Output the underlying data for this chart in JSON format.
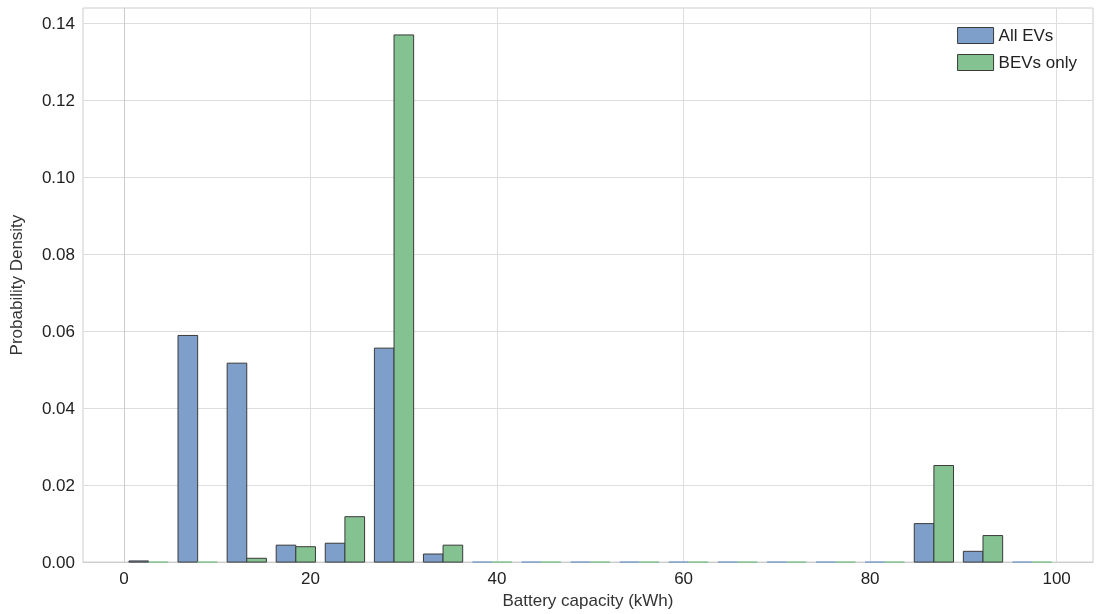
{
  "chart_data": {
    "type": "histogram",
    "xlabel": "Battery capacity (kWh)",
    "ylabel": "Probability Density",
    "bins": [
      0,
      5.26,
      10.53,
      15.79,
      21.05,
      26.32,
      31.58,
      36.84,
      42.11,
      47.37,
      52.63,
      57.89,
      63.16,
      68.42,
      73.68,
      78.95,
      84.21,
      89.47,
      94.74,
      100
    ],
    "series": [
      {
        "name": "All EVs",
        "color": "#7f9fcb",
        "values": [
          0.0003,
          0.0589,
          0.0517,
          0.0044,
          0.0049,
          0.0556,
          0.0021,
          0,
          0,
          0,
          0,
          0,
          0,
          0,
          0,
          0,
          0.01,
          0.0028,
          0
        ]
      },
      {
        "name": "BEVs only",
        "color": "#84c391",
        "values": [
          0,
          0,
          0.001,
          0.004,
          0.0118,
          0.137,
          0.0044,
          0,
          0,
          0,
          0,
          0,
          0,
          0,
          0,
          0,
          0.0251,
          0.0069,
          0
        ]
      }
    ],
    "xlim": [
      -4.4,
      103.9
    ],
    "ylim": [
      0,
      0.144
    ],
    "xticks": [
      0,
      20,
      40,
      60,
      80,
      100
    ],
    "yticks": [
      {
        "value": 0,
        "label": "0.00"
      },
      {
        "value": 0.02,
        "label": "0.02"
      },
      {
        "value": 0.04,
        "label": "0.04"
      },
      {
        "value": 0.06,
        "label": "0.06"
      },
      {
        "value": 0.08,
        "label": "0.08"
      },
      {
        "value": 0.1,
        "label": "0.10"
      },
      {
        "value": 0.12,
        "label": "0.12"
      },
      {
        "value": 0.14,
        "label": "0.14"
      }
    ],
    "grid": true,
    "legend": "top right"
  }
}
